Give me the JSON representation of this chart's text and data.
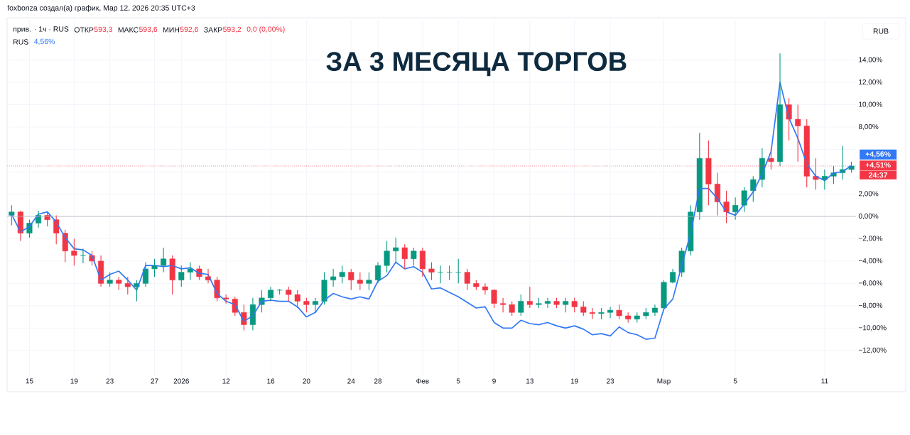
{
  "chart_data": {
    "type": "candlestick",
    "title": "ЗА 3 МЕСЯЦА ТОРГОВ",
    "annotations": [
      "foxbonza создал(а) график, Мар 12, 2026 20:35 UTC+3",
      "прив. · 1ч · RUS",
      "ОТКР",
      "593,3",
      "МАКС",
      "593,6",
      "МИН",
      "592,6",
      "ЗАКР",
      "593,2",
      "0,0 (0,00%)",
      "RUS",
      "4,56%",
      "RUB",
      "+4,56%",
      "24:37"
    ],
    "categories": [
      null,
      null,
      "15",
      null,
      null,
      null,
      null,
      "19",
      null,
      null,
      null,
      "23",
      null,
      null,
      null,
      null,
      "27",
      null,
      null,
      "2026",
      null,
      null,
      null,
      null,
      "12",
      null,
      null,
      null,
      null,
      "16",
      null,
      null,
      null,
      "20",
      null,
      null,
      null,
      null,
      "24",
      null,
      null,
      "28",
      null,
      null,
      null,
      null,
      "Фев",
      null,
      null,
      null,
      "5",
      null,
      null,
      null,
      "9",
      null,
      null,
      null,
      "13",
      null,
      null,
      null,
      null,
      "19",
      null,
      null,
      null,
      "23",
      null,
      null,
      null,
      null,
      null,
      "Мар",
      null,
      null,
      null,
      null,
      null,
      null,
      null,
      "5",
      null,
      null,
      null,
      null,
      null,
      null,
      null,
      null,
      null,
      "11",
      null,
      null,
      null
    ],
    "series": [
      {
        "ohlc": [
          [
            0.1,
            1.0,
            -0.8,
            0.4
          ],
          [
            0.4,
            0.5,
            -2.2,
            -1.5
          ],
          [
            -1.5,
            -0.3,
            -1.9,
            -0.6
          ],
          [
            -0.6,
            0.5,
            -1.0,
            0.1
          ],
          [
            0.1,
            0.4,
            -0.9,
            -0.3
          ],
          [
            -0.3,
            0.1,
            -2.5,
            -1.5
          ],
          [
            -1.5,
            -1.2,
            -4.1,
            -3.1
          ],
          [
            -3.1,
            -2.0,
            -4.4,
            -3.5
          ],
          [
            -3.5,
            -2.9,
            -4.2,
            -3.5
          ],
          [
            -3.5,
            -3.1,
            -4.4,
            -4.0
          ],
          [
            -4.0,
            -3.5,
            -6.3,
            -6.0
          ],
          [
            -6.0,
            -5.0,
            -6.3,
            -5.7
          ],
          [
            -5.7,
            -5.4,
            -6.6,
            -6.0
          ],
          [
            -6.0,
            -5.4,
            -7.0,
            -6.3
          ],
          [
            -6.3,
            -5.7,
            -7.6,
            -6.0
          ],
          [
            -6.0,
            -4.1,
            -6.3,
            -4.7
          ],
          [
            -4.7,
            -3.8,
            -5.4,
            -4.4
          ],
          [
            -4.4,
            -2.8,
            -5.0,
            -3.8
          ],
          [
            -3.8,
            -3.5,
            -7.0,
            -5.7
          ],
          [
            -5.7,
            -4.4,
            -6.3,
            -5.0
          ],
          [
            -5.0,
            -4.1,
            -5.7,
            -4.7
          ],
          [
            -4.7,
            -4.4,
            -5.7,
            -5.4
          ],
          [
            -5.4,
            -4.7,
            -6.0,
            -5.7
          ],
          [
            -5.7,
            -5.4,
            -7.6,
            -7.3
          ],
          [
            -7.3,
            -7.0,
            -7.8,
            -7.4
          ],
          [
            -7.4,
            -7.2,
            -8.9,
            -8.6
          ],
          [
            -8.6,
            -7.9,
            -10.2,
            -9.7
          ],
          [
            -9.7,
            -7.3,
            -10.2,
            -7.9
          ],
          [
            -7.9,
            -6.6,
            -8.6,
            -7.3
          ],
          [
            -7.3,
            -6.3,
            -7.6,
            -6.6
          ],
          [
            -6.6,
            -6.5,
            -7.0,
            -6.6
          ],
          [
            -6.6,
            -6.3,
            -7.6,
            -7.0
          ],
          [
            -7.0,
            -6.6,
            -8.2,
            -7.6
          ],
          [
            -7.6,
            -7.3,
            -8.6,
            -7.9
          ],
          [
            -7.9,
            -7.3,
            -8.6,
            -7.6
          ],
          [
            -7.6,
            -5.0,
            -7.9,
            -5.7
          ],
          [
            -5.7,
            -4.7,
            -6.3,
            -5.4
          ],
          [
            -5.4,
            -4.4,
            -6.0,
            -5.0
          ],
          [
            -5.0,
            -4.7,
            -6.6,
            -5.7
          ],
          [
            -5.7,
            -5.0,
            -6.6,
            -6.0
          ],
          [
            -6.0,
            -5.0,
            -6.6,
            -5.7
          ],
          [
            -5.7,
            -4.1,
            -6.0,
            -4.4
          ],
          [
            -4.4,
            -2.2,
            -5.0,
            -3.1
          ],
          [
            -3.1,
            -1.9,
            -4.1,
            -2.8
          ],
          [
            -2.8,
            -2.5,
            -4.7,
            -3.8
          ],
          [
            -3.8,
            -2.8,
            -4.4,
            -3.1
          ],
          [
            -3.1,
            -2.8,
            -5.4,
            -4.7
          ],
          [
            -4.7,
            -4.1,
            -5.7,
            -5.0
          ],
          [
            -5.0,
            -4.4,
            -6.0,
            -5.0
          ],
          [
            -5.0,
            -4.4,
            -5.7,
            -5.0
          ],
          [
            -5.0,
            -3.8,
            -6.0,
            -5.0
          ],
          [
            -5.0,
            -4.7,
            -6.6,
            -6.0
          ],
          [
            -6.0,
            -5.7,
            -6.6,
            -6.3
          ],
          [
            -6.3,
            -6.0,
            -7.0,
            -6.6
          ],
          [
            -6.6,
            -6.5,
            -8.2,
            -7.8
          ],
          [
            -7.8,
            -7.3,
            -8.6,
            -7.9
          ],
          [
            -7.9,
            -7.6,
            -8.9,
            -8.6
          ],
          [
            -8.6,
            -7.0,
            -8.9,
            -7.6
          ],
          [
            -7.6,
            -6.3,
            -8.2,
            -7.9
          ],
          [
            -7.9,
            -7.3,
            -8.2,
            -7.8
          ],
          [
            -7.8,
            -7.3,
            -8.2,
            -7.6
          ],
          [
            -7.6,
            -7.3,
            -8.2,
            -7.9
          ],
          [
            -7.9,
            -7.3,
            -8.6,
            -7.6
          ],
          [
            -7.6,
            -7.3,
            -8.6,
            -8.1
          ],
          [
            -8.1,
            -7.6,
            -8.9,
            -8.6
          ],
          [
            -8.6,
            -8.2,
            -9.2,
            -8.7
          ],
          [
            -8.7,
            -8.2,
            -9.2,
            -8.6
          ],
          [
            -8.6,
            -8.1,
            -9.1,
            -8.4
          ],
          [
            -8.4,
            -7.9,
            -9.2,
            -8.9
          ],
          [
            -8.9,
            -8.6,
            -9.5,
            -9.2
          ],
          [
            -9.2,
            -8.6,
            -9.5,
            -8.9
          ],
          [
            -8.9,
            -8.2,
            -9.2,
            -8.6
          ],
          [
            -8.6,
            -7.9,
            -8.9,
            -8.2
          ],
          [
            -8.2,
            -5.7,
            -8.4,
            -5.9
          ],
          [
            -5.9,
            -4.7,
            -6.0,
            -5.0
          ],
          [
            -5.0,
            -2.8,
            -5.4,
            -3.1
          ],
          [
            -3.1,
            1.0,
            -3.5,
            0.4
          ],
          [
            0.4,
            7.5,
            -0.3,
            5.2
          ],
          [
            5.2,
            6.8,
            1.0,
            2.9
          ],
          [
            2.9,
            3.9,
            0.1,
            1.3
          ],
          [
            1.3,
            2.3,
            -0.6,
            0.4
          ],
          [
            0.4,
            1.7,
            -0.3,
            1.0
          ],
          [
            1.0,
            2.6,
            0.4,
            2.3
          ],
          [
            2.3,
            3.6,
            1.3,
            3.3
          ],
          [
            3.3,
            6.1,
            2.6,
            5.2
          ],
          [
            5.2,
            6.1,
            4.2,
            4.9
          ],
          [
            4.9,
            14.6,
            4.5,
            10.0
          ],
          [
            10.0,
            10.6,
            6.8,
            8.7
          ],
          [
            8.7,
            10.0,
            4.9,
            8.1
          ],
          [
            8.1,
            8.7,
            2.6,
            3.6
          ],
          [
            3.6,
            5.2,
            2.4,
            3.3
          ],
          [
            3.3,
            4.2,
            2.4,
            3.6
          ],
          [
            3.6,
            4.5,
            2.9,
            3.9
          ],
          [
            3.9,
            6.3,
            3.3,
            4.2
          ],
          [
            4.2,
            4.9,
            3.9,
            4.51
          ]
        ],
        "colors": [
          "#089981",
          "#f23645",
          "#089981",
          "#089981",
          "#f23645",
          "#f23645",
          "#f23645",
          "#f23645",
          "#089981",
          "#f23645",
          "#f23645",
          "#089981",
          "#f23645",
          "#f23645",
          "#089981",
          "#089981",
          "#089981",
          "#089981",
          "#f23645",
          "#089981",
          "#089981",
          "#f23645",
          "#f23645",
          "#f23645",
          "#f23645",
          "#f23645",
          "#f23645",
          "#089981",
          "#089981",
          "#089981",
          "#089981",
          "#f23645",
          "#f23645",
          "#f23645",
          "#089981",
          "#089981",
          "#089981",
          "#089981",
          "#f23645",
          "#f23645",
          "#089981",
          "#089981",
          "#089981",
          "#089981",
          "#f23645",
          "#089981",
          "#f23645",
          "#f23645",
          "#089981",
          "#089981",
          "#089981",
          "#f23645",
          "#f23645",
          "#f23645",
          "#f23645",
          "#f23645",
          "#f23645",
          "#089981",
          "#f23645",
          "#089981",
          "#089981",
          "#f23645",
          "#089981",
          "#f23645",
          "#f23645",
          "#f23645",
          "#089981",
          "#089981",
          "#f23645",
          "#f23645",
          "#089981",
          "#089981",
          "#089981",
          "#089981",
          "#089981",
          "#089981",
          "#089981",
          "#089981",
          "#f23645",
          "#f23645",
          "#f23645",
          "#089981",
          "#089981",
          "#089981",
          "#089981",
          "#f23645",
          "#089981",
          "#f23645",
          "#f23645",
          "#f23645",
          "#f23645",
          "#089981",
          "#089981",
          "#089981",
          "#089981"
        ]
      },
      {
        "type": "line",
        "color": "#3179f5",
        "values": [
          0.2,
          -1.4,
          -0.9,
          0.2,
          0.4,
          -0.5,
          -1.9,
          -2.9,
          -3.0,
          -3.5,
          -5.7,
          -5.2,
          -4.9,
          -5.7,
          -6.6,
          -4.4,
          -4.4,
          -4.5,
          -4.4,
          -4.7,
          -4.6,
          -5.1,
          -5.2,
          -6.9,
          -7.6,
          -7.9,
          -9.4,
          -8.9,
          -7.6,
          -7.5,
          -7.6,
          -7.6,
          -8.1,
          -9.0,
          -8.6,
          -7.5,
          -6.9,
          -7.2,
          -7.4,
          -7.2,
          -7.4,
          -5.8,
          -5.3,
          -4.1,
          -4.7,
          -4.5,
          -5.0,
          -6.5,
          -6.4,
          -6.8,
          -7.2,
          -7.7,
          -8.2,
          -8.1,
          -9.5,
          -10.0,
          -10.0,
          -9.3,
          -9.6,
          -9.7,
          -9.5,
          -9.8,
          -10.0,
          -9.8,
          -10.1,
          -10.6,
          -10.5,
          -10.7,
          -9.9,
          -10.4,
          -10.6,
          -11.0,
          -10.9,
          -8.3,
          -7.4,
          -4.4,
          -1.5,
          2.5,
          2.5,
          1.6,
          0.4,
          0.1,
          1.1,
          2.2,
          3.8,
          5.8,
          12.0,
          8.8,
          7.0,
          4.7,
          3.6,
          3.2,
          3.9,
          4.0,
          4.56
        ]
      }
    ],
    "ylim": [
      -14.3,
      17.6
    ],
    "yticks": [
      {
        "value": -12,
        "label": "−12,00%"
      },
      {
        "value": -10,
        "label": "−10,00%"
      },
      {
        "value": -8,
        "label": "−8,00%"
      },
      {
        "value": -6,
        "label": "−6,00%"
      },
      {
        "value": -4,
        "label": "−4,00%"
      },
      {
        "value": -2,
        "label": "−2,00%"
      },
      {
        "value": 0,
        "label": "0,00%"
      },
      {
        "value": 2,
        "label": "2,00%"
      },
      {
        "value": 4,
        "label": null
      },
      {
        "value": 6,
        "label": null
      },
      {
        "value": 8,
        "label": "8,00%"
      },
      {
        "value": 10,
        "label": "10,00%"
      },
      {
        "value": 12,
        "label": "12,00%"
      },
      {
        "value": 14,
        "label": "14,00%"
      }
    ],
    "ref_lines": [
      {
        "axis": "y",
        "value": 0,
        "color": "#b2b5be",
        "line_style": "solid"
      },
      {
        "axis": "y",
        "value": 4.51,
        "label": "+4,51%",
        "color": "#f23645",
        "line_style": "dotted"
      }
    ],
    "grid": true
  }
}
